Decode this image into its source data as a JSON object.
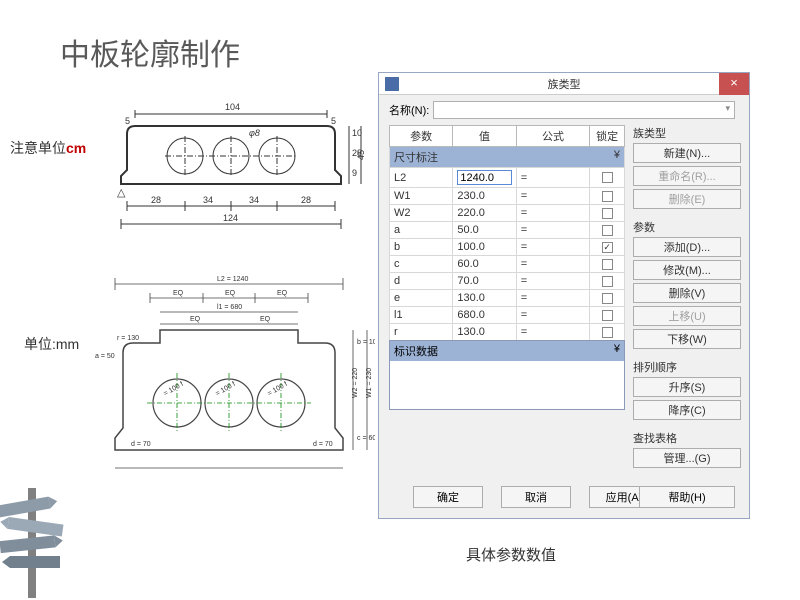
{
  "title": "中板轮廓制作",
  "note_unit_cm": {
    "prefix": "注意单位",
    "unit": "cm"
  },
  "note_unit_mm": "单位:mm",
  "caption": "具体参数数值",
  "top_drawing": {
    "top_dim": "104",
    "left_small": "5",
    "right_small": "5",
    "arc_label": "φ8",
    "side_dims_right": [
      "10",
      "28",
      "9",
      "45"
    ],
    "bottom_dims": [
      "28",
      "34",
      "34",
      "28"
    ],
    "total_bottom": "124",
    "triangle": "△"
  },
  "bot_drawing": {
    "top": "L2 = 1240",
    "eq": "EQ",
    "inner": "l1 = 680",
    "side_r": "r = 130",
    "a": "a = 50",
    "e": "e = 130",
    "d": "d = 70",
    "w1": "W1 = 230",
    "w2": "W2 = 220",
    "b": "b = 100",
    "c": "c = 60",
    "circ": "= 100 f"
  },
  "dialog": {
    "title": "族类型",
    "name_label": "名称(N):",
    "columns": {
      "param": "参数",
      "value": "值",
      "formula": "公式",
      "lock": "锁定"
    },
    "group_dims": "尺寸标注",
    "rows": [
      {
        "p": "L2",
        "v": "1240.0",
        "locked": false,
        "active": true
      },
      {
        "p": "W1",
        "v": "230.0",
        "locked": false
      },
      {
        "p": "W2",
        "v": "220.0",
        "locked": false
      },
      {
        "p": "a",
        "v": "50.0",
        "locked": false
      },
      {
        "p": "b",
        "v": "100.0",
        "locked": true
      },
      {
        "p": "c",
        "v": "60.0",
        "locked": false
      },
      {
        "p": "d",
        "v": "70.0",
        "locked": false
      },
      {
        "p": "e",
        "v": "130.0",
        "locked": false
      },
      {
        "p": "l1",
        "v": "680.0",
        "locked": false
      },
      {
        "p": "r",
        "v": "130.0",
        "locked": false
      }
    ],
    "group_ident": "标识数据",
    "side": {
      "family_type": "族类型",
      "new": "新建(N)...",
      "rename": "重命名(R)...",
      "delete_type": "删除(E)",
      "params": "参数",
      "add": "添加(D)...",
      "modify": "修改(M)...",
      "delete_param": "删除(V)",
      "move_up": "上移(U)",
      "move_down": "下移(W)",
      "sort": "排列顺序",
      "asc": "升序(S)",
      "desc": "降序(C)",
      "lookup": "查找表格",
      "manage": "管理...(G)"
    },
    "buttons": {
      "ok": "确定",
      "cancel": "取消",
      "apply": "应用(A)",
      "help": "帮助(H)"
    }
  }
}
